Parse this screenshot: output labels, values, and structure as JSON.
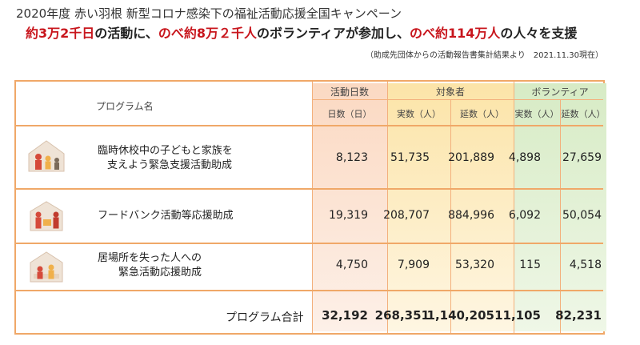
{
  "header": {
    "title": "2020年度 赤い羽根 新型コロナ感染下の福祉活動応援全国キャンペーン",
    "headline_parts": [
      {
        "text": "約3万2千日",
        "red": true
      },
      {
        "text": "の活動に、",
        "red": false
      },
      {
        "text": "のべ約8万２千人",
        "red": true
      },
      {
        "text": "のボランティアが参加し、",
        "red": false
      },
      {
        "text": "のべ約114万人",
        "red": true
      },
      {
        "text": "の人々を支援",
        "red": false
      }
    ],
    "note": "（助成先団体からの活動報告書集計結果より　2021.11.30現在）"
  },
  "table": {
    "program_header": "プログラム名",
    "group_headers": {
      "days": "活動日数",
      "target": "対象者",
      "volunteer": "ボランティア"
    },
    "sub_headers": {
      "days": "日数（日）",
      "target_actual": "実数（人）",
      "target_total": "延数（人）",
      "vol_actual": "実数（人）",
      "vol_total": "延数（人）"
    },
    "rows": [
      {
        "label_line1": "臨時休校中の子どもと家族を",
        "label_line2": "支えよう緊急支援活動助成",
        "days": "8,123",
        "target_actual": "51,735",
        "target_total": "201,889",
        "vol_actual": "4,898",
        "vol_total": "27,659"
      },
      {
        "label_line1": "フードバンク活動等応援助成",
        "label_line2": "",
        "days": "19,319",
        "target_actual": "208,707",
        "target_total": "884,996",
        "vol_actual": "6,092",
        "vol_total": "50,054"
      },
      {
        "label_line1": "居場所を失った人への",
        "label_line2": "緊急活動応援助成",
        "days": "4,750",
        "target_actual": "7,909",
        "target_total": "53,320",
        "vol_actual": "115",
        "vol_total": "4,518"
      }
    ],
    "total": {
      "label": "プログラム合計",
      "days": "32,192",
      "target_actual": "268,351",
      "target_total": "1,140,205",
      "vol_actual": "11,105",
      "vol_total": "82,231"
    }
  },
  "colors": {
    "accent": "#c8161d",
    "border": "#f0a868"
  }
}
